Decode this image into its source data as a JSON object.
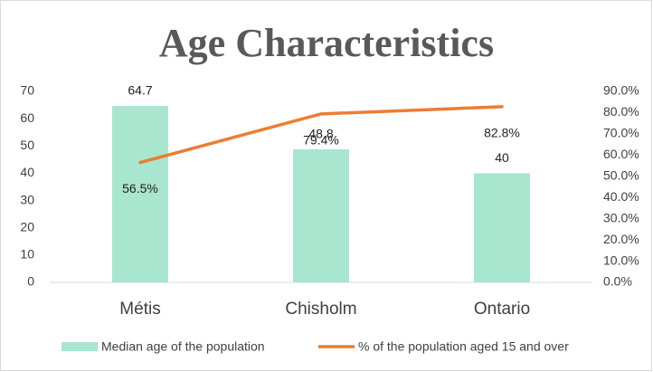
{
  "chart_data": {
    "type": "bar_line",
    "title": "Age Characteristics",
    "categories": [
      "Métis",
      "Chisholm",
      "Ontario"
    ],
    "series": [
      {
        "name": "Median age of the population",
        "type": "bar",
        "color": "#a8e6cf",
        "values": [
          64.7,
          48.8,
          40
        ]
      },
      {
        "name": "% of the population aged 15 and over",
        "type": "line",
        "axis": "y2",
        "color": "#ed7d31",
        "values": [
          56.5,
          79.4,
          82.8
        ],
        "value_labels": [
          "56.5%",
          "79.4%",
          "82.8%"
        ]
      }
    ],
    "ylim": [
      0,
      70
    ],
    "yticks": [
      0,
      10,
      20,
      30,
      40,
      50,
      60,
      70
    ],
    "y2lim": [
      0,
      90
    ],
    "y2ticks": [
      {
        "value": 0,
        "label": "0.0%"
      },
      {
        "value": 10,
        "label": "10.0%"
      },
      {
        "value": 20,
        "label": "20.0%"
      },
      {
        "value": 30,
        "label": "30.0%"
      },
      {
        "value": 40,
        "label": "40.0%"
      },
      {
        "value": 50,
        "label": "50.0%"
      },
      {
        "value": 60,
        "label": "60.0%"
      },
      {
        "value": 70,
        "label": "70.0%"
      },
      {
        "value": 80,
        "label": "80.0%"
      },
      {
        "value": 90,
        "label": "90.0%"
      }
    ],
    "legend": "bottom",
    "grid": false
  }
}
